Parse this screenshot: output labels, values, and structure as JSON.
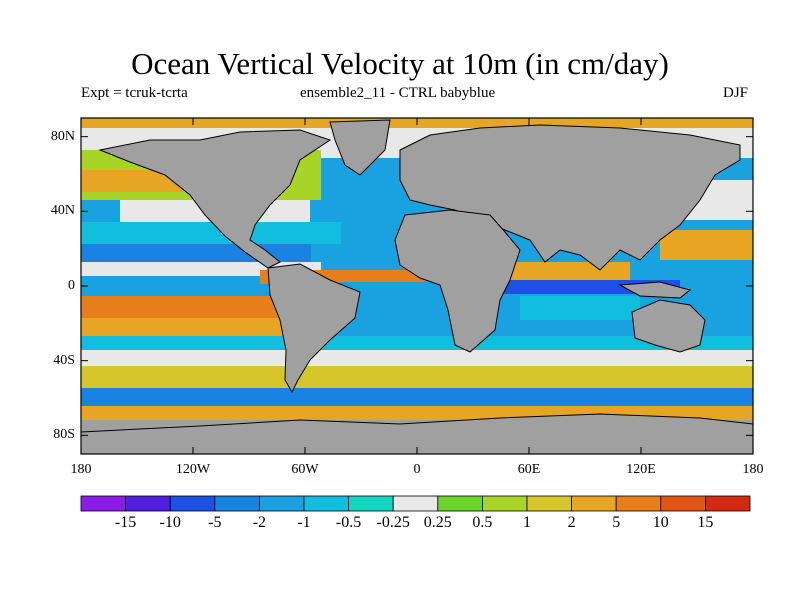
{
  "title": "Ocean Vertical Velocity at 10m (in cm/day)",
  "subtitle_left": "Expt = tcruk-tcrta",
  "subtitle_center": "ensemble2_11 - CTRL babyblue",
  "subtitle_right": "DJF",
  "lat_labels": [
    "80N",
    "40N",
    "0",
    "40S",
    "80S"
  ],
  "lat_values": [
    80,
    40,
    0,
    -40,
    -80
  ],
  "lon_labels": [
    "180",
    "120W",
    "60W",
    "0",
    "60E",
    "120E",
    "180"
  ],
  "lon_values": [
    -180,
    -120,
    -60,
    0,
    60,
    120,
    180
  ],
  "map_extent": {
    "lon": [
      -180,
      180
    ],
    "lat": [
      -90,
      90
    ]
  },
  "land_color": "#a0a0a0",
  "colorbar": {
    "labels": [
      "-15",
      "-10",
      "-5",
      "-2",
      "-1",
      "-0.5",
      "-0.25",
      "0.25",
      "0.5",
      "1",
      "2",
      "5",
      "10",
      "15"
    ],
    "colors": [
      "#8a1be8",
      "#5020e0",
      "#1e50e6",
      "#1a82e0",
      "#1aa2e0",
      "#12bede",
      "#14d6c0",
      "#e8e8e8",
      "#6ad42a",
      "#a8d428",
      "#d6c62a",
      "#e6a624",
      "#e67e1c",
      "#e25418",
      "#d42a14"
    ]
  }
}
